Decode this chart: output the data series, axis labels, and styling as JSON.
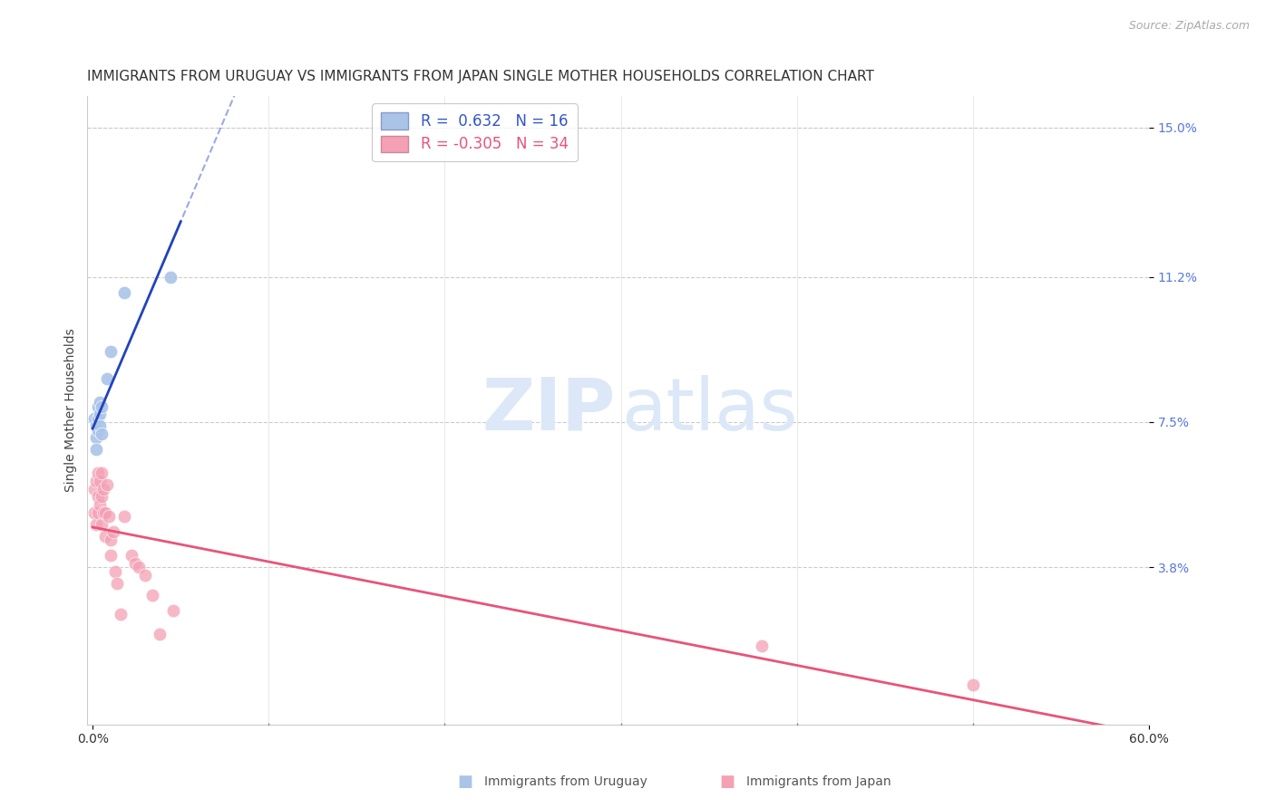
{
  "title": "IMMIGRANTS FROM URUGUAY VS IMMIGRANTS FROM JAPAN SINGLE MOTHER HOUSEHOLDS CORRELATION CHART",
  "source": "Source: ZipAtlas.com",
  "ylabel": "Single Mother Households",
  "xlim": [
    0.0,
    0.6
  ],
  "ylim": [
    -0.002,
    0.158
  ],
  "ytick_right_labels": [
    "15.0%",
    "11.2%",
    "7.5%",
    "3.8%"
  ],
  "ytick_right_values": [
    0.15,
    0.112,
    0.075,
    0.038
  ],
  "grid_color": "#cccccc",
  "background_color": "#ffffff",
  "uruguay_color": "#aac4e8",
  "japan_color": "#f4a0b5",
  "uruguay_line_color": "#2244bb",
  "uruguay_line_dash_color": "#aabbdd",
  "japan_line_color": "#e8547a",
  "uruguay_R": 0.632,
  "uruguay_N": 16,
  "japan_R": -0.305,
  "japan_N": 34,
  "watermark_zip": "ZIP",
  "watermark_atlas": "atlas",
  "watermark_color": "#dce8f8",
  "legend_box_color": "#ffffff",
  "legend_border_color": "#bbbbbb",
  "uruguay_scatter_x": [
    0.001,
    0.002,
    0.002,
    0.002,
    0.003,
    0.003,
    0.003,
    0.004,
    0.004,
    0.004,
    0.005,
    0.005,
    0.008,
    0.01,
    0.018,
    0.044
  ],
  "uruguay_scatter_y": [
    0.076,
    0.074,
    0.071,
    0.068,
    0.079,
    0.076,
    0.073,
    0.08,
    0.077,
    0.074,
    0.079,
    0.072,
    0.086,
    0.093,
    0.108,
    0.112
  ],
  "japan_scatter_x": [
    0.001,
    0.001,
    0.002,
    0.002,
    0.003,
    0.003,
    0.003,
    0.004,
    0.004,
    0.005,
    0.005,
    0.005,
    0.006,
    0.006,
    0.007,
    0.007,
    0.008,
    0.009,
    0.01,
    0.01,
    0.012,
    0.013,
    0.014,
    0.016,
    0.018,
    0.022,
    0.024,
    0.026,
    0.03,
    0.034,
    0.038,
    0.046,
    0.38,
    0.5
  ],
  "japan_scatter_y": [
    0.058,
    0.052,
    0.06,
    0.049,
    0.062,
    0.056,
    0.052,
    0.06,
    0.054,
    0.062,
    0.056,
    0.049,
    0.058,
    0.052,
    0.052,
    0.046,
    0.059,
    0.051,
    0.045,
    0.041,
    0.047,
    0.037,
    0.034,
    0.026,
    0.051,
    0.041,
    0.039,
    0.038,
    0.036,
    0.031,
    0.021,
    0.027,
    0.018,
    0.008
  ],
  "title_fontsize": 11,
  "axis_label_fontsize": 10,
  "tick_fontsize": 10,
  "legend_fontsize": 12,
  "watermark_fontsize": 58
}
